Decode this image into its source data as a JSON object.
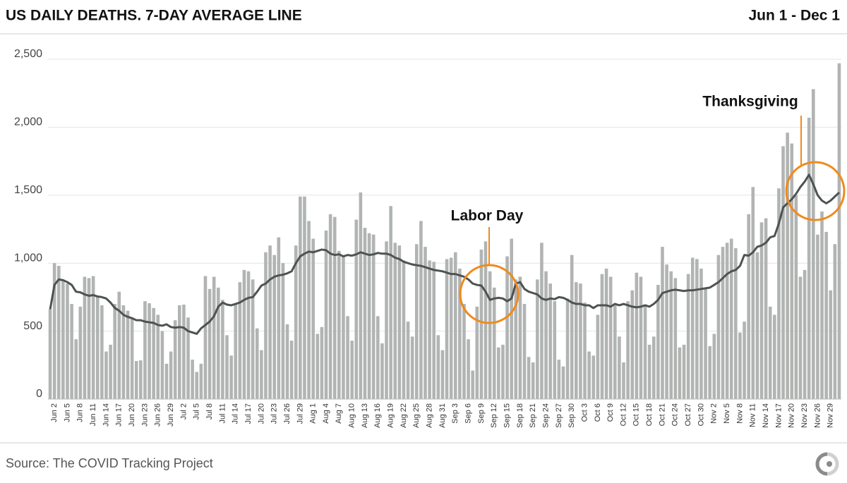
{
  "chart_data": {
    "type": "bar",
    "title": "US DAILY DEATHS. 7-DAY AVERAGE LINE",
    "subtitle": "Jun 1 - Dec 1",
    "source": "Source: The COVID Tracking Project",
    "annotations": [
      "Labor Day",
      "Thanksgiving"
    ],
    "categories": [
      null,
      "Jun 2",
      null,
      null,
      "Jun 5",
      null,
      null,
      "Jun 8",
      null,
      null,
      "Jun 11",
      null,
      null,
      "Jun 14",
      null,
      null,
      "Jun 17",
      null,
      null,
      "Jun 20",
      null,
      null,
      "Jun 23",
      null,
      null,
      "Jun 26",
      null,
      null,
      "Jun 29",
      null,
      null,
      "Jul 2",
      null,
      null,
      "Jul 5",
      null,
      null,
      "Jul 8",
      null,
      null,
      "Jul 11",
      null,
      null,
      "Jul 14",
      null,
      null,
      "Jul 17",
      null,
      null,
      "Jul 20",
      null,
      null,
      "Jul 23",
      null,
      null,
      "Jul 26",
      null,
      null,
      "Jul 29",
      null,
      null,
      "Aug 1",
      null,
      null,
      "Aug 4",
      null,
      null,
      "Aug 7",
      null,
      null,
      "Aug 10",
      null,
      null,
      "Aug 13",
      null,
      null,
      "Aug 16",
      null,
      null,
      "Aug 19",
      null,
      null,
      "Aug 22",
      null,
      null,
      "Aug 25",
      null,
      null,
      "Aug 28",
      null,
      null,
      "Aug 31",
      null,
      null,
      "Sep 3",
      null,
      null,
      "Sep 6",
      null,
      null,
      "Sep 9",
      null,
      null,
      "Sep 12",
      null,
      null,
      "Sep 15",
      null,
      null,
      "Sep 18",
      null,
      null,
      "Sep 21",
      null,
      null,
      "Sep 24",
      null,
      null,
      "Sep 27",
      null,
      null,
      "Sep 30",
      null,
      null,
      "Oct 3",
      null,
      null,
      "Oct 6",
      null,
      null,
      "Oct 9",
      null,
      null,
      "Oct 12",
      null,
      null,
      "Oct 15",
      null,
      null,
      "Oct 18",
      null,
      null,
      "Oct 21",
      null,
      null,
      "Oct 24",
      null,
      null,
      "Oct 27",
      null,
      null,
      "Oct 30",
      null,
      null,
      "Nov 2",
      null,
      null,
      "Nov 5",
      null,
      null,
      "Nov 8",
      null,
      null,
      "Nov 11",
      null,
      null,
      "Nov 14",
      null,
      null,
      "Nov 17",
      null,
      null,
      "Nov 20",
      null,
      null,
      "Nov 23",
      null,
      null,
      "Nov 26",
      null,
      null,
      "Nov 29",
      null,
      null
    ],
    "series": [
      {
        "type": "bar",
        "color": "#b1b4b2",
        "values": [
          660,
          1000,
          980,
          870,
          850,
          700,
          440,
          680,
          900,
          890,
          905,
          760,
          690,
          350,
          400,
          700,
          790,
          690,
          650,
          590,
          280,
          285,
          720,
          705,
          670,
          620,
          500,
          260,
          350,
          580,
          690,
          695,
          600,
          290,
          200,
          260,
          905,
          810,
          900,
          820,
          730,
          470,
          320,
          700,
          860,
          950,
          940,
          880,
          520,
          360,
          1080,
          1130,
          1060,
          1190,
          1000,
          550,
          430,
          1130,
          1490,
          1490,
          1310,
          1180,
          480,
          530,
          1240,
          1360,
          1340,
          1090,
          1060,
          610,
          430,
          1320,
          1520,
          1260,
          1220,
          1210,
          610,
          410,
          1160,
          1420,
          1150,
          1130,
          1020,
          570,
          460,
          1140,
          1310,
          1120,
          1020,
          1010,
          470,
          360,
          1030,
          1040,
          1080,
          960,
          700,
          440,
          210,
          680,
          1100,
          1160,
          940,
          820,
          380,
          400,
          1050,
          1180,
          880,
          900,
          700,
          310,
          270,
          880,
          1150,
          940,
          850,
          720,
          290,
          240,
          740,
          1060,
          860,
          850,
          710,
          350,
          320,
          620,
          920,
          960,
          900,
          690,
          460,
          270,
          720,
          800,
          930,
          900,
          690,
          400,
          460,
          840,
          1120,
          990,
          940,
          890,
          380,
          400,
          920,
          1040,
          1030,
          960,
          820,
          390,
          480,
          1060,
          1120,
          1150,
          1180,
          1110,
          490,
          570,
          1360,
          1560,
          1080,
          1300,
          1330,
          680,
          620,
          1550,
          1860,
          1960,
          1880,
          1500,
          900,
          950,
          2070,
          2280,
          1210,
          1380,
          1230,
          800,
          1140,
          2470
        ]
      },
      {
        "type": "line",
        "color": "#4d5252",
        "values": [
          660,
          840,
          880,
          875,
          860,
          840,
          790,
          785,
          770,
          760,
          765,
          755,
          750,
          740,
          710,
          670,
          650,
          620,
          605,
          595,
          580,
          580,
          570,
          565,
          560,
          545,
          540,
          550,
          530,
          525,
          530,
          525,
          500,
          490,
          480,
          520,
          545,
          570,
          610,
          680,
          710,
          695,
          690,
          700,
          710,
          730,
          745,
          750,
          790,
          835,
          850,
          880,
          900,
          910,
          915,
          925,
          940,
          1000,
          1050,
          1070,
          1085,
          1080,
          1090,
          1100,
          1095,
          1070,
          1060,
          1065,
          1050,
          1060,
          1055,
          1065,
          1080,
          1070,
          1060,
          1065,
          1075,
          1070,
          1070,
          1060,
          1040,
          1030,
          1010,
          1000,
          990,
          985,
          980,
          970,
          960,
          950,
          945,
          940,
          930,
          920,
          920,
          910,
          900,
          880,
          850,
          840,
          835,
          790,
          730,
          740,
          745,
          740,
          720,
          740,
          850,
          860,
          810,
          790,
          780,
          770,
          740,
          730,
          740,
          735,
          750,
          745,
          730,
          710,
          700,
          700,
          690,
          690,
          670,
          690,
          690,
          690,
          680,
          700,
          690,
          700,
          690,
          680,
          675,
          680,
          690,
          680,
          700,
          730,
          780,
          790,
          800,
          805,
          800,
          795,
          800,
          800,
          805,
          810,
          815,
          820,
          840,
          860,
          890,
          920,
          940,
          950,
          980,
          1060,
          1055,
          1080,
          1120,
          1130,
          1150,
          1190,
          1200,
          1290,
          1410,
          1440,
          1470,
          1510,
          1560,
          1600,
          1650,
          1580,
          1500,
          1460,
          1440,
          1460,
          1490,
          1520
        ]
      }
    ],
    "ylim": [
      0,
      2500
    ],
    "yticks": [
      0,
      500,
      {
        "value": 1000,
        "label": "1,000"
      },
      {
        "value": 1500,
        "label": "1,500"
      },
      {
        "value": 2000,
        "label": "2,000"
      },
      {
        "value": 2500,
        "label": "2,500"
      }
    ],
    "grid": true,
    "annotation_color": "#f08a1c"
  }
}
